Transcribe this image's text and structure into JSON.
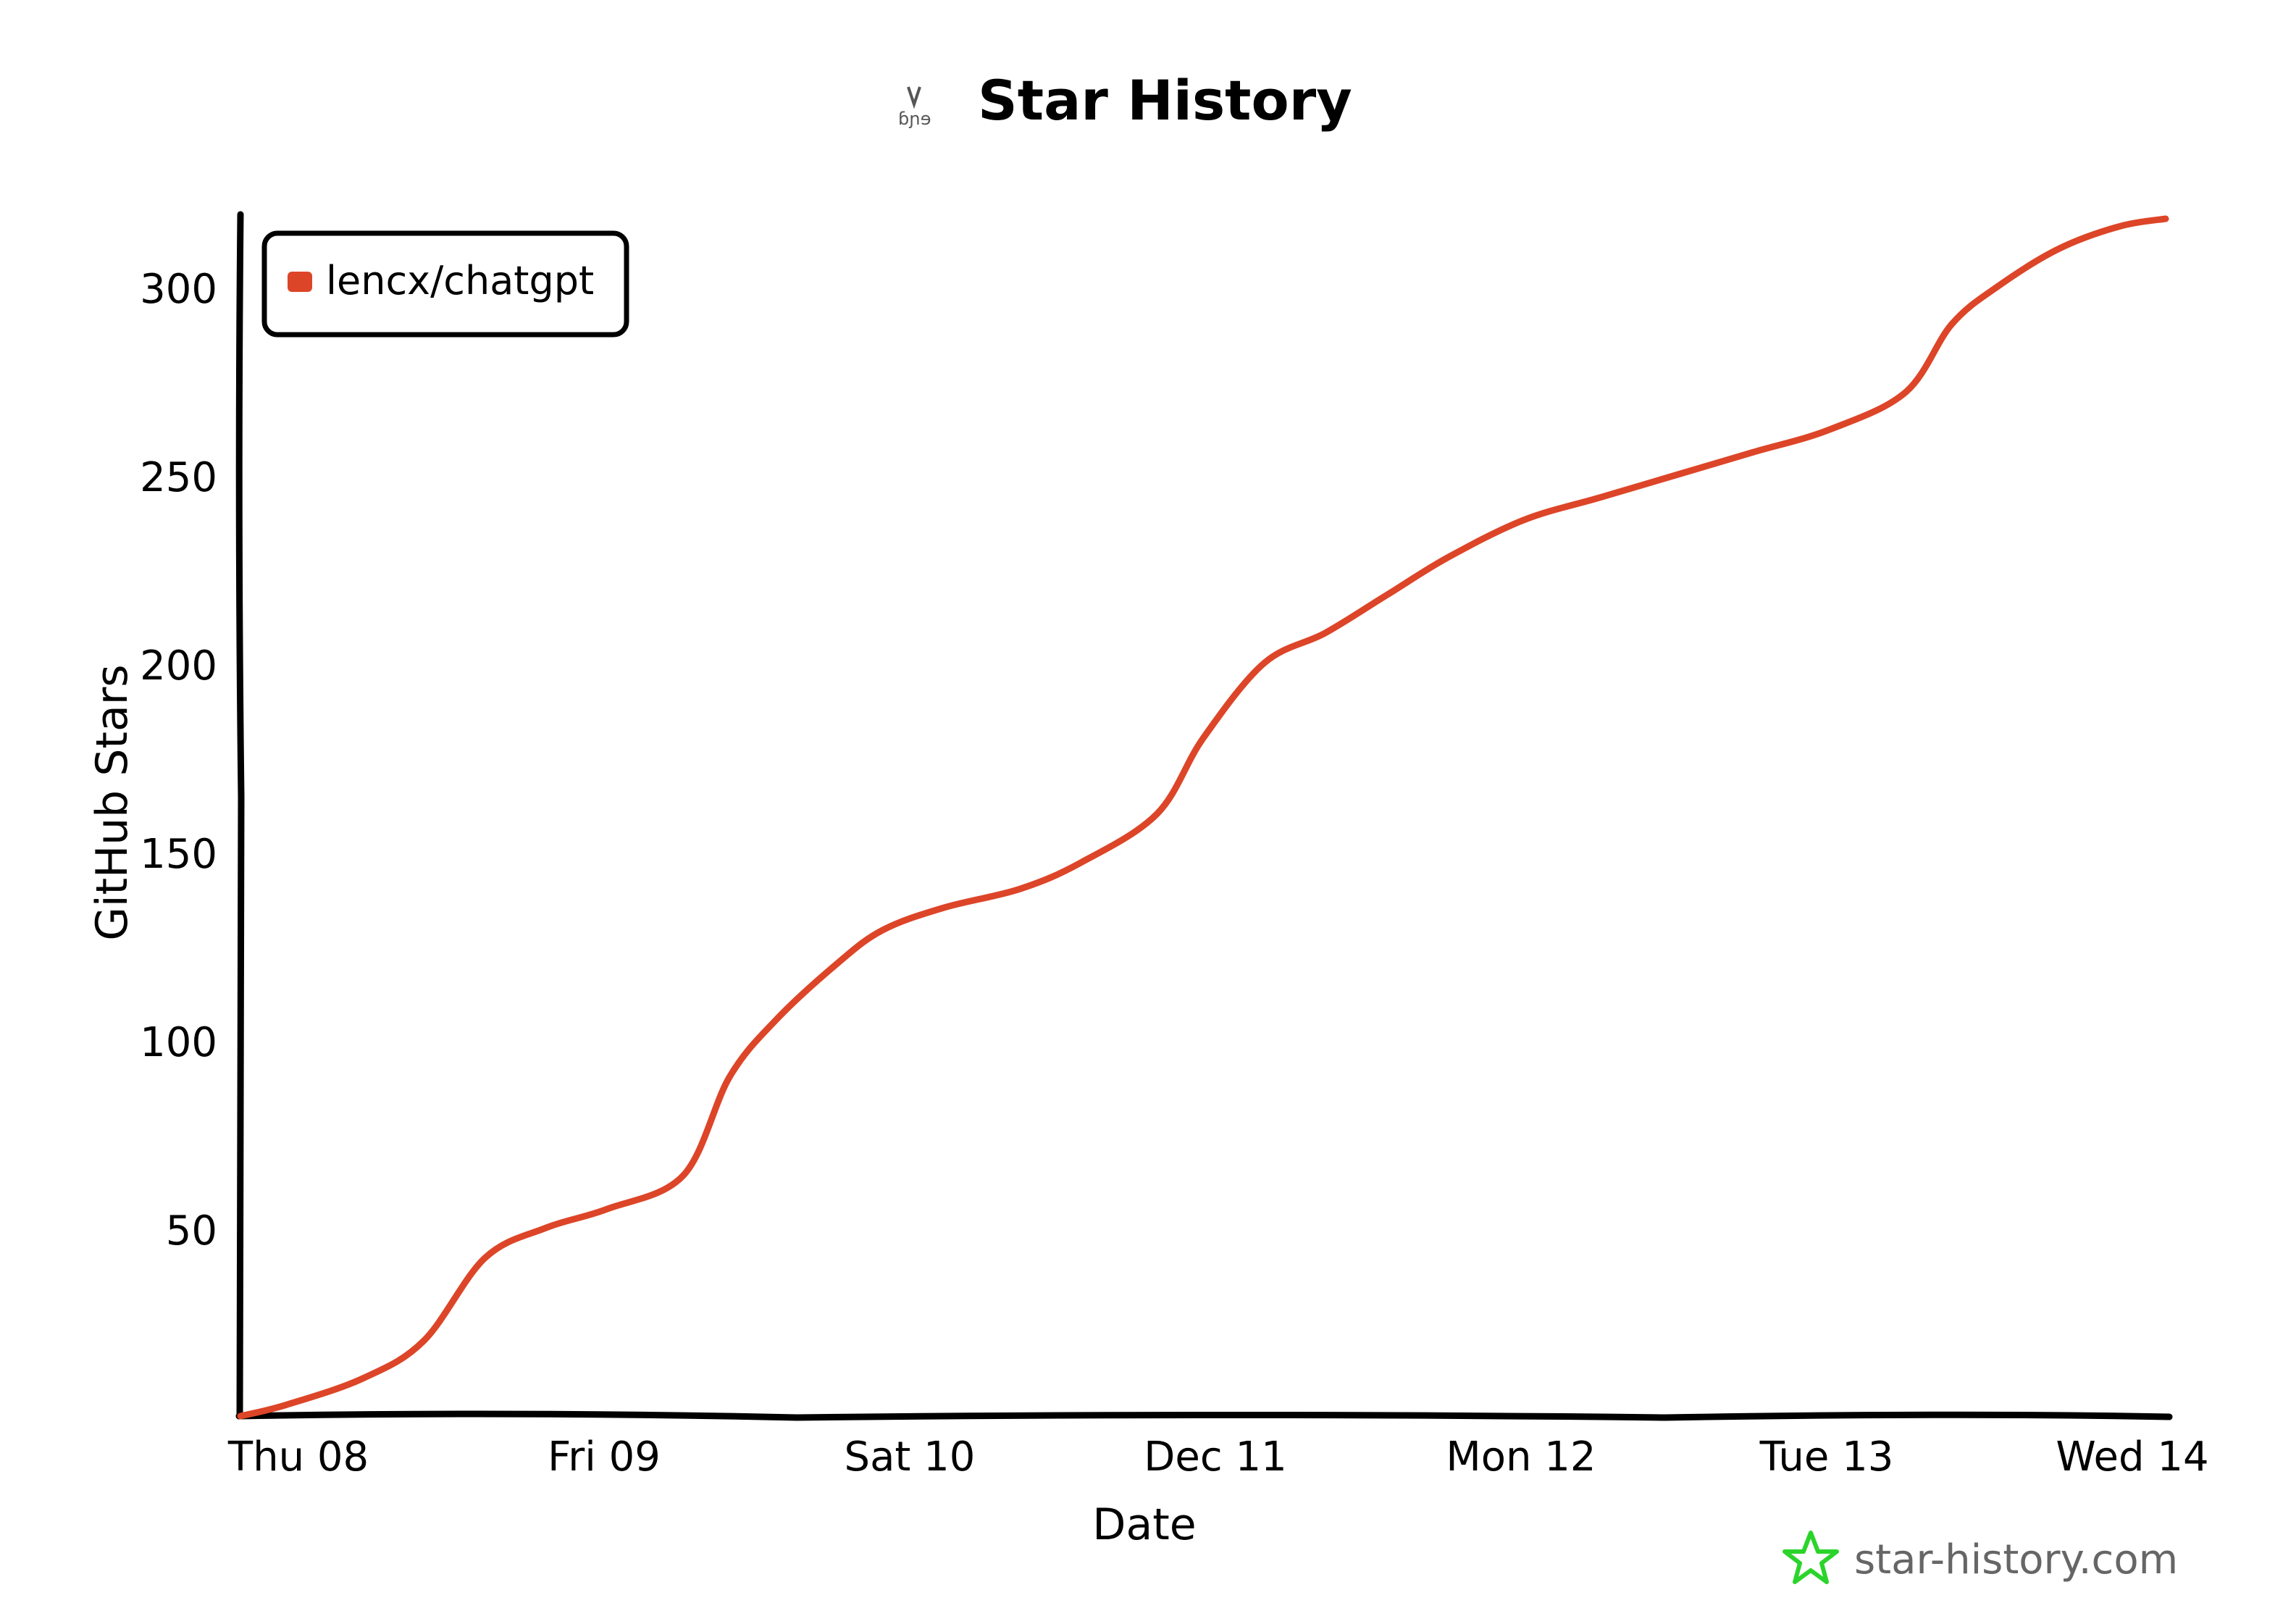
{
  "chart_data": {
    "type": "line",
    "title": "Star History",
    "xlabel": "Date",
    "ylabel": "GitHub Stars",
    "x_tick_labels": [
      "Thu 08",
      "Fri 09",
      "Sat 10",
      "Dec 11",
      "Mon 12",
      "Tue 13",
      "Wed 14"
    ],
    "y_ticks": [
      50,
      100,
      150,
      200,
      250,
      300
    ],
    "ylim": [
      0,
      318
    ],
    "xlim": [
      0,
      6.3
    ],
    "grid": false,
    "legend": {
      "position": "top-left"
    },
    "series": [
      {
        "name": "lencx/chatgpt",
        "color": "#dd4528",
        "x": [
          0,
          0.15,
          0.4,
          0.6,
          0.8,
          1.0,
          1.2,
          1.45,
          1.6,
          1.75,
          1.95,
          2.1,
          2.3,
          2.55,
          2.75,
          3.0,
          3.15,
          3.35,
          3.55,
          3.75,
          3.95,
          4.2,
          4.45,
          4.7,
          4.95,
          5.2,
          5.45,
          5.6,
          5.75,
          5.95,
          6.15,
          6.3
        ],
        "y": [
          0,
          3,
          10,
          20,
          42,
          50,
          55,
          64,
          90,
          105,
          120,
          129,
          135,
          140,
          147,
          160,
          180,
          200,
          208,
          218,
          228,
          238,
          244,
          250,
          256,
          262,
          272,
          290,
          300,
          310,
          316,
          318
        ]
      }
    ]
  },
  "watermark": "star-history.com",
  "colors": {
    "line": "#dd4528",
    "axis": "#000000",
    "watermark_icon": "#2bd42b"
  }
}
